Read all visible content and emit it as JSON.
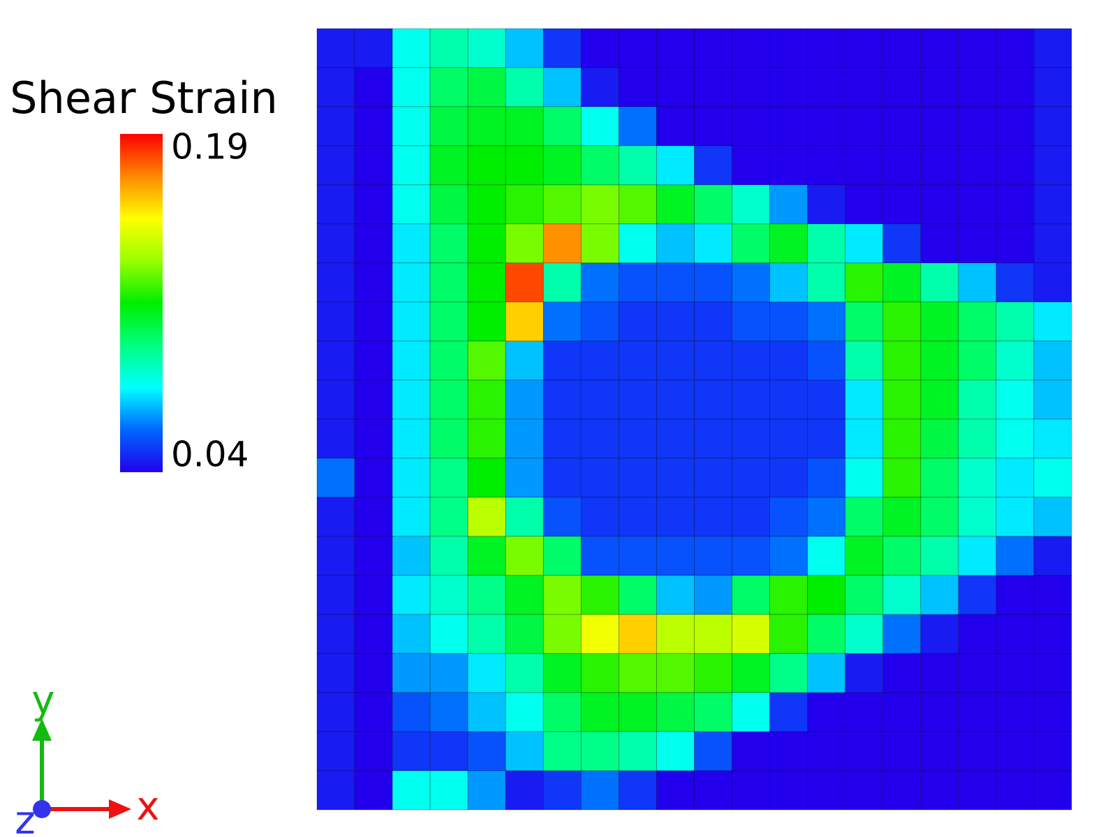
{
  "chart_data": {
    "type": "heatmap",
    "title": "Shear Strain",
    "clim": [
      0.04,
      0.19
    ],
    "cticks": [
      0.19,
      0.04
    ],
    "colormap": [
      "#2200ee",
      "#0066ff",
      "#00ffff",
      "#00ff80",
      "#00ee00",
      "#99ff00",
      "#ffff00",
      "#ff8800",
      "#ff0000"
    ],
    "axes_labels": {
      "x": "x",
      "y": "y",
      "z": "z"
    },
    "values": [
      [
        0.045,
        0.045,
        0.08,
        0.09,
        0.085,
        0.07,
        0.05,
        0.04,
        0.04,
        0.04,
        0.04,
        0.04,
        0.04,
        0.04,
        0.04,
        0.04,
        0.04,
        0.04,
        0.04,
        0.045
      ],
      [
        0.045,
        0.04,
        0.08,
        0.1,
        0.105,
        0.09,
        0.07,
        0.045,
        0.04,
        0.04,
        0.04,
        0.04,
        0.04,
        0.04,
        0.04,
        0.04,
        0.04,
        0.04,
        0.04,
        0.045
      ],
      [
        0.045,
        0.04,
        0.08,
        0.105,
        0.11,
        0.11,
        0.1,
        0.08,
        0.06,
        0.04,
        0.04,
        0.04,
        0.04,
        0.04,
        0.04,
        0.04,
        0.04,
        0.04,
        0.04,
        0.045
      ],
      [
        0.045,
        0.04,
        0.08,
        0.11,
        0.115,
        0.115,
        0.11,
        0.1,
        0.09,
        0.075,
        0.05,
        0.04,
        0.04,
        0.04,
        0.04,
        0.04,
        0.04,
        0.04,
        0.04,
        0.045
      ],
      [
        0.045,
        0.04,
        0.08,
        0.105,
        0.115,
        0.12,
        0.125,
        0.13,
        0.125,
        0.11,
        0.1,
        0.085,
        0.065,
        0.045,
        0.04,
        0.04,
        0.04,
        0.04,
        0.04,
        0.045
      ],
      [
        0.045,
        0.04,
        0.075,
        0.1,
        0.115,
        0.13,
        0.17,
        0.13,
        0.08,
        0.07,
        0.075,
        0.1,
        0.11,
        0.09,
        0.075,
        0.05,
        0.04,
        0.04,
        0.04,
        0.045
      ],
      [
        0.045,
        0.04,
        0.075,
        0.1,
        0.115,
        0.18,
        0.09,
        0.06,
        0.055,
        0.055,
        0.055,
        0.06,
        0.07,
        0.09,
        0.12,
        0.11,
        0.09,
        0.07,
        0.05,
        0.045
      ],
      [
        0.045,
        0.04,
        0.075,
        0.1,
        0.115,
        0.16,
        0.06,
        0.055,
        0.05,
        0.05,
        0.05,
        0.055,
        0.055,
        0.06,
        0.1,
        0.12,
        0.11,
        0.1,
        0.09,
        0.075
      ],
      [
        0.045,
        0.04,
        0.075,
        0.1,
        0.125,
        0.07,
        0.05,
        0.05,
        0.05,
        0.05,
        0.05,
        0.05,
        0.05,
        0.055,
        0.09,
        0.12,
        0.11,
        0.1,
        0.085,
        0.07
      ],
      [
        0.045,
        0.04,
        0.075,
        0.1,
        0.12,
        0.065,
        0.05,
        0.05,
        0.05,
        0.05,
        0.05,
        0.05,
        0.05,
        0.05,
        0.075,
        0.12,
        0.11,
        0.09,
        0.08,
        0.07
      ],
      [
        0.045,
        0.04,
        0.075,
        0.1,
        0.12,
        0.065,
        0.05,
        0.05,
        0.05,
        0.05,
        0.05,
        0.05,
        0.05,
        0.05,
        0.075,
        0.12,
        0.105,
        0.09,
        0.08,
        0.075
      ],
      [
        0.06,
        0.04,
        0.075,
        0.095,
        0.115,
        0.065,
        0.05,
        0.05,
        0.05,
        0.05,
        0.05,
        0.05,
        0.05,
        0.055,
        0.08,
        0.12,
        0.1,
        0.085,
        0.075,
        0.08
      ],
      [
        0.045,
        0.04,
        0.075,
        0.095,
        0.14,
        0.09,
        0.055,
        0.05,
        0.05,
        0.05,
        0.05,
        0.05,
        0.055,
        0.06,
        0.1,
        0.11,
        0.1,
        0.085,
        0.075,
        0.07
      ],
      [
        0.045,
        0.04,
        0.07,
        0.09,
        0.11,
        0.13,
        0.1,
        0.055,
        0.055,
        0.055,
        0.055,
        0.055,
        0.06,
        0.08,
        0.11,
        0.1,
        0.09,
        0.075,
        0.06,
        0.045
      ],
      [
        0.045,
        0.04,
        0.075,
        0.085,
        0.095,
        0.11,
        0.13,
        0.12,
        0.1,
        0.07,
        0.065,
        0.1,
        0.12,
        0.115,
        0.1,
        0.085,
        0.07,
        0.05,
        0.04,
        0.04
      ],
      [
        0.045,
        0.04,
        0.07,
        0.08,
        0.09,
        0.105,
        0.13,
        0.15,
        0.16,
        0.14,
        0.14,
        0.145,
        0.12,
        0.1,
        0.085,
        0.06,
        0.045,
        0.04,
        0.04,
        0.04
      ],
      [
        0.045,
        0.04,
        0.065,
        0.065,
        0.075,
        0.09,
        0.11,
        0.12,
        0.125,
        0.125,
        0.12,
        0.11,
        0.095,
        0.07,
        0.045,
        0.04,
        0.04,
        0.04,
        0.04,
        0.04
      ],
      [
        0.045,
        0.04,
        0.055,
        0.06,
        0.07,
        0.08,
        0.1,
        0.11,
        0.11,
        0.105,
        0.1,
        0.08,
        0.05,
        0.04,
        0.04,
        0.04,
        0.04,
        0.04,
        0.04,
        0.04
      ],
      [
        0.045,
        0.04,
        0.05,
        0.05,
        0.055,
        0.07,
        0.095,
        0.095,
        0.09,
        0.08,
        0.055,
        0.04,
        0.04,
        0.04,
        0.04,
        0.04,
        0.04,
        0.04,
        0.04,
        0.04
      ],
      [
        0.045,
        0.04,
        0.08,
        0.08,
        0.065,
        0.045,
        0.05,
        0.06,
        0.05,
        0.04,
        0.04,
        0.04,
        0.04,
        0.04,
        0.04,
        0.04,
        0.04,
        0.04,
        0.04,
        0.04
      ]
    ]
  }
}
